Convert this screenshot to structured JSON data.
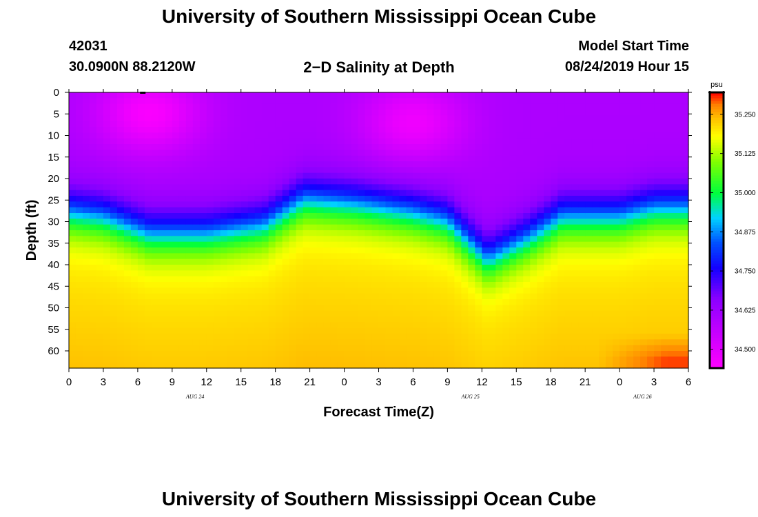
{
  "header": {
    "title": "University of Southern Mississippi Ocean Cube",
    "station_id": "42031",
    "location": "30.0900N 88.2120W",
    "plot_title": "2−D Salinity at Depth",
    "model_label": "Model Start Time",
    "model_time": "08/24/2019 Hour 15"
  },
  "footer": {
    "title": "University of Southern Mississippi Ocean Cube"
  },
  "chart_data": {
    "type": "heatmap",
    "title": "2-D Salinity at Depth",
    "xlabel": "Forecast Time(Z)",
    "ylabel": "Depth (ft)",
    "x_tick_labels": [
      "0",
      "3",
      "6",
      "9",
      "12",
      "15",
      "18",
      "21",
      "0",
      "3",
      "6",
      "9",
      "12",
      "15",
      "18",
      "21",
      "0",
      "3",
      "6"
    ],
    "x_range_hours": [
      0,
      54
    ],
    "date_labels": [
      {
        "label": "AUG 24",
        "hour": 11
      },
      {
        "label": "AUG 25",
        "hour": 35
      },
      {
        "label": "AUG 26",
        "hour": 50
      }
    ],
    "y_ticks": [
      0,
      5,
      10,
      15,
      20,
      25,
      30,
      35,
      40,
      45,
      50,
      55,
      60
    ],
    "ylim": [
      0,
      64
    ],
    "colorbar": {
      "unit": "psu",
      "ticks": [
        "35.250",
        "35.125",
        "35.000",
        "34.875",
        "34.750",
        "34.625",
        "34.500"
      ],
      "range": [
        34.44,
        35.32
      ]
    },
    "salinity_fields": {
      "min_psu": 34.44,
      "max_psu": 35.32,
      "surface_psu": 34.6,
      "deep_psu": 35.2
    },
    "halocline_depth_ft": [
      {
        "hour": 0,
        "depth": 28
      },
      {
        "hour": 3,
        "depth": 29
      },
      {
        "hour": 7,
        "depth": 33
      },
      {
        "hour": 12,
        "depth": 33
      },
      {
        "hour": 17,
        "depth": 31
      },
      {
        "hour": 20.5,
        "depth": 25
      },
      {
        "hour": 25,
        "depth": 26
      },
      {
        "hour": 30,
        "depth": 28
      },
      {
        "hour": 33,
        "depth": 30
      },
      {
        "hour": 36.5,
        "depth": 39
      },
      {
        "hour": 40,
        "depth": 34
      },
      {
        "hour": 43,
        "depth": 29
      },
      {
        "hour": 48,
        "depth": 29
      },
      {
        "hour": 51,
        "depth": 27
      },
      {
        "hour": 54,
        "depth": 27
      }
    ],
    "high_salinity_corner": {
      "hour_start": 46,
      "depth_start": 56,
      "psu": 35.3
    },
    "low_salinity_pockets": [
      {
        "hour": 7,
        "depth": 5,
        "psu": 34.45
      },
      {
        "hour": 30,
        "depth": 7,
        "psu": 34.47
      }
    ]
  }
}
